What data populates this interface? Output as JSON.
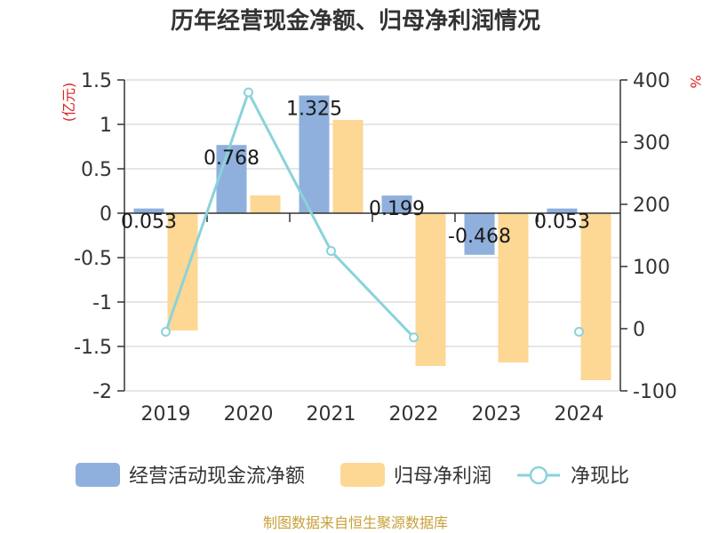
{
  "title": "历年经营现金净额、归母净利润情况",
  "source": "制图数据来自恒生聚源数据库",
  "units": {
    "left": "(亿元)",
    "right": "%"
  },
  "colors": {
    "cash_flow": "#8fb0dc",
    "net_profit": "#fdd794",
    "ratio": "#8ad3da",
    "unit_text": "#e02020",
    "axis": "#333333",
    "grid": "#cccccc"
  },
  "chart_data": {
    "type": "bar",
    "categories": [
      "2019",
      "2020",
      "2021",
      "2022",
      "2023",
      "2024"
    ],
    "series": [
      {
        "name": "经营活动现金流净额",
        "type": "bar",
        "axis": "left",
        "values": [
          0.053,
          0.768,
          1.325,
          0.199,
          -0.468,
          0.053
        ]
      },
      {
        "name": "归母净利润",
        "type": "bar",
        "axis": "left",
        "values": [
          -1.32,
          0.2,
          1.05,
          -1.72,
          -1.68,
          -1.88
        ]
      },
      {
        "name": "净现比",
        "type": "line",
        "axis": "right",
        "values": [
          -5,
          380,
          125,
          -14,
          null,
          -5
        ]
      }
    ],
    "data_labels": [
      "0.053",
      "0.768",
      "1.325",
      "0.199",
      "-0.468",
      "0.053"
    ],
    "y_left": {
      "min": -2,
      "max": 1.5,
      "ticks": [
        "1.5",
        "1",
        "0.5",
        "0",
        "-0.5",
        "-1",
        "-1.5",
        "-2"
      ]
    },
    "y_right": {
      "min": -100,
      "max": 400,
      "ticks": [
        "400",
        "300",
        "200",
        "100",
        "0",
        "-100"
      ]
    },
    "grid": true,
    "legend_position": "bottom"
  }
}
